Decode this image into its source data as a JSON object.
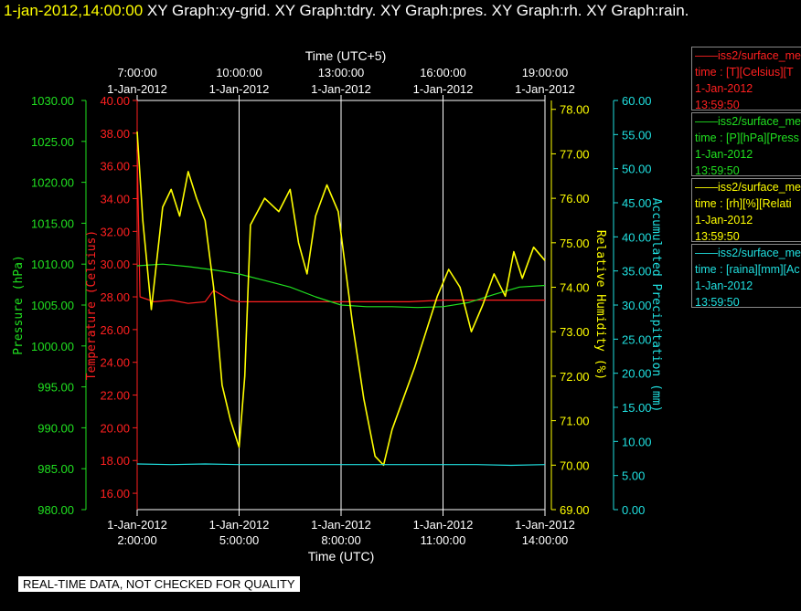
{
  "header": {
    "timestamp": "1-jan-2012,14:00:00",
    "graphs": "XY Graph:xy-grid.  XY Graph:tdry.  XY Graph:pres.  XY Graph:rh.  XY Graph:rain."
  },
  "footer": {
    "notice": "REAL-TIME DATA, NOT CHECKED FOR QUALITY"
  },
  "colors": {
    "temperature": "#ff2020",
    "pressure": "#20e020",
    "humidity": "#ffff00",
    "precip": "#20e0e0",
    "grid": "#ffffff"
  },
  "legend": [
    {
      "title": "iss2/surface_me",
      "units": "time : [T][Celsius][T",
      "date": "1-Jan-2012",
      "time": "13:59:50",
      "color": "#ff2020"
    },
    {
      "title": "iss2/surface_me",
      "units": "time : [P][hPa][Press",
      "date": "1-Jan-2012",
      "time": "13:59:50",
      "color": "#20e020"
    },
    {
      "title": "iss2/surface_me",
      "units": "time : [rh][%][Relati",
      "date": "1-Jan-2012",
      "time": "13:59:50",
      "color": "#ffff00"
    },
    {
      "title": "iss2/surface_me",
      "units": "time : [raina][mm][Ac",
      "date": "1-Jan-2012",
      "time": "13:59:50",
      "color": "#20e0e0"
    }
  ],
  "chart_data": {
    "type": "line",
    "title": "",
    "xlabel": "Time (UTC)",
    "x_top_label": "Time (UTC+5)",
    "xlim": [
      "2012-01-01 02:00",
      "2012-01-01 14:00"
    ],
    "x_ticks_bottom": [
      {
        "date": "1-Jan-2012",
        "time": "2:00:00"
      },
      {
        "date": "1-Jan-2012",
        "time": "5:00:00"
      },
      {
        "date": "1-Jan-2012",
        "time": "8:00:00"
      },
      {
        "date": "1-Jan-2012",
        "time": "11:00:00"
      },
      {
        "date": "1-Jan-2012",
        "time": "14:00:00"
      }
    ],
    "x_ticks_top": [
      {
        "time": "7:00:00",
        "date": "1-Jan-2012"
      },
      {
        "time": "10:00:00",
        "date": "1-Jan-2012"
      },
      {
        "time": "13:00:00",
        "date": "1-Jan-2012"
      },
      {
        "time": "16:00:00",
        "date": "1-Jan-2012"
      },
      {
        "time": "19:00:00",
        "date": "1-Jan-2012"
      }
    ],
    "axes": {
      "pressure": {
        "label": "Pressure (hPa)",
        "ylim": [
          980,
          1030
        ],
        "ticks": [
          "980.00",
          "985.00",
          "990.00",
          "995.00",
          "1000.00",
          "1005.00",
          "1010.00",
          "1015.00",
          "1020.00",
          "1025.00",
          "1030.00"
        ]
      },
      "temperature": {
        "label": "Temperature (Celsius)",
        "ylim": [
          15,
          40
        ],
        "ticks": [
          "16.00",
          "18.00",
          "20.00",
          "22.00",
          "24.00",
          "26.00",
          "28.00",
          "30.00",
          "32.00",
          "34.00",
          "36.00",
          "38.00",
          "40.00"
        ]
      },
      "humidity": {
        "label": "Relative Humidity (%)",
        "ylim": [
          69,
          78.2
        ],
        "ticks": [
          "69.00",
          "70.00",
          "71.00",
          "72.00",
          "73.00",
          "74.00",
          "75.00",
          "76.00",
          "77.00",
          "78.00"
        ]
      },
      "precip": {
        "label": "Accumulated Precipitation (mm)",
        "ylim": [
          0,
          60
        ],
        "ticks": [
          "0.00",
          "5.00",
          "10.00",
          "15.00",
          "20.00",
          "25.00",
          "30.00",
          "35.00",
          "40.00",
          "45.00",
          "50.00",
          "55.00",
          "60.00"
        ]
      }
    },
    "series": [
      {
        "axis": "temperature",
        "color": "#ff2020",
        "points": [
          [
            "02:00",
            37.0
          ],
          [
            "02:05",
            28.0
          ],
          [
            "02:30",
            27.7
          ],
          [
            "03:00",
            27.8
          ],
          [
            "03:30",
            27.6
          ],
          [
            "04:00",
            27.7
          ],
          [
            "04:15",
            28.4
          ],
          [
            "04:30",
            28.1
          ],
          [
            "04:45",
            27.8
          ],
          [
            "05:00",
            27.7
          ],
          [
            "06:00",
            27.7
          ],
          [
            "07:00",
            27.7
          ],
          [
            "08:00",
            27.7
          ],
          [
            "09:00",
            27.7
          ],
          [
            "10:00",
            27.7
          ],
          [
            "11:00",
            27.8
          ],
          [
            "12:00",
            27.8
          ],
          [
            "13:00",
            27.8
          ],
          [
            "14:00",
            27.8
          ]
        ]
      },
      {
        "axis": "pressure",
        "color": "#20e020",
        "points": [
          [
            "02:00",
            1009.8
          ],
          [
            "02:45",
            1010.0
          ],
          [
            "03:30",
            1009.7
          ],
          [
            "04:15",
            1009.3
          ],
          [
            "05:00",
            1008.8
          ],
          [
            "05:45",
            1008.0
          ],
          [
            "06:30",
            1007.2
          ],
          [
            "07:15",
            1006.0
          ],
          [
            "08:00",
            1005.0
          ],
          [
            "08:45",
            1004.8
          ],
          [
            "09:30",
            1004.8
          ],
          [
            "10:15",
            1004.7
          ],
          [
            "11:00",
            1004.8
          ],
          [
            "11:45",
            1005.3
          ],
          [
            "12:30",
            1006.3
          ],
          [
            "13:15",
            1007.2
          ],
          [
            "14:00",
            1007.4
          ]
        ]
      },
      {
        "axis": "humidity",
        "color": "#ffff00",
        "points": [
          [
            "02:00",
            77.5
          ],
          [
            "02:10",
            75.5
          ],
          [
            "02:25",
            73.5
          ],
          [
            "02:45",
            75.8
          ],
          [
            "03:00",
            76.2
          ],
          [
            "03:15",
            75.6
          ],
          [
            "03:30",
            76.6
          ],
          [
            "03:45",
            76.0
          ],
          [
            "04:00",
            75.5
          ],
          [
            "04:15",
            74.0
          ],
          [
            "04:30",
            71.8
          ],
          [
            "04:45",
            71.0
          ],
          [
            "05:00",
            70.4
          ],
          [
            "05:10",
            72.0
          ],
          [
            "05:20",
            75.4
          ],
          [
            "05:45",
            76.0
          ],
          [
            "06:10",
            75.7
          ],
          [
            "06:30",
            76.2
          ],
          [
            "06:45",
            75.0
          ],
          [
            "07:00",
            74.3
          ],
          [
            "07:15",
            75.6
          ],
          [
            "07:35",
            76.3
          ],
          [
            "07:55",
            75.7
          ],
          [
            "08:10",
            74.2
          ],
          [
            "08:20",
            73.2
          ],
          [
            "08:40",
            71.5
          ],
          [
            "09:00",
            70.2
          ],
          [
            "09:15",
            70.0
          ],
          [
            "09:30",
            70.8
          ],
          [
            "09:50",
            71.5
          ],
          [
            "10:10",
            72.2
          ],
          [
            "10:30",
            73.0
          ],
          [
            "10:50",
            73.8
          ],
          [
            "11:10",
            74.4
          ],
          [
            "11:30",
            74.0
          ],
          [
            "11:50",
            73.0
          ],
          [
            "12:10",
            73.6
          ],
          [
            "12:30",
            74.3
          ],
          [
            "12:50",
            73.8
          ],
          [
            "13:05",
            74.8
          ],
          [
            "13:20",
            74.2
          ],
          [
            "13:40",
            74.9
          ],
          [
            "14:00",
            74.6
          ]
        ]
      },
      {
        "axis": "precip",
        "color": "#20e0e0",
        "points": [
          [
            "02:00",
            6.7
          ],
          [
            "03:00",
            6.6
          ],
          [
            "04:00",
            6.7
          ],
          [
            "05:00",
            6.6
          ],
          [
            "06:00",
            6.6
          ],
          [
            "07:00",
            6.6
          ],
          [
            "08:00",
            6.6
          ],
          [
            "09:00",
            6.6
          ],
          [
            "10:00",
            6.6
          ],
          [
            "11:00",
            6.6
          ],
          [
            "12:00",
            6.6
          ],
          [
            "13:00",
            6.5
          ],
          [
            "14:00",
            6.6
          ]
        ]
      }
    ]
  }
}
